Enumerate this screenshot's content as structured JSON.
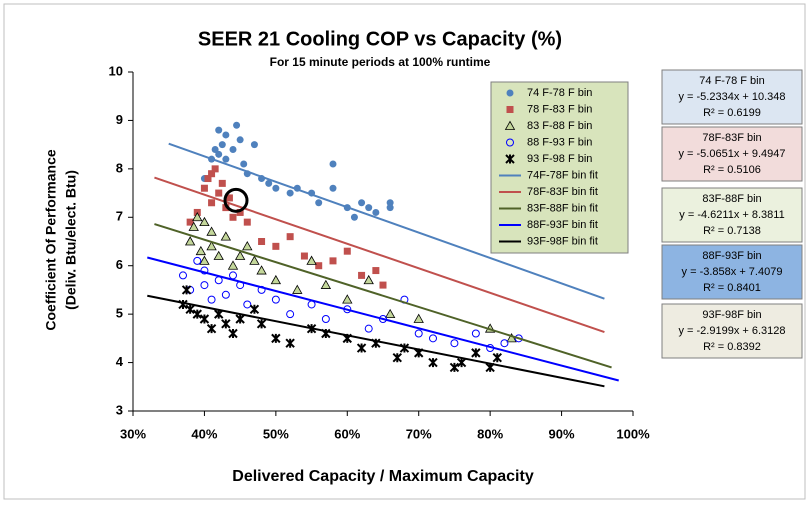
{
  "chart_data": {
    "type": "scatter",
    "title": "SEER 21 Cooling COP vs Capacity (%)",
    "subtitle": "For 15 minute periods at 100% runtime",
    "x_label": "Delivered Capacity / Maximum Capacity",
    "y_label": [
      "Coefficient Of Performance",
      "(Deliv. Btu/elect. Btu)"
    ],
    "xlim": [
      30,
      100
    ],
    "xticks": [
      {
        "value": 30,
        "label": "30%"
      },
      {
        "value": 40,
        "label": "40%"
      },
      {
        "value": 50,
        "label": "50%"
      },
      {
        "value": 60,
        "label": "60%"
      },
      {
        "value": 70,
        "label": "70%"
      },
      {
        "value": 80,
        "label": "80%"
      },
      {
        "value": 90,
        "label": "90%"
      },
      {
        "value": 100,
        "label": "100%"
      }
    ],
    "ylim": [
      3,
      10
    ],
    "yticks": [
      3,
      4,
      5,
      6,
      7,
      8,
      9,
      10
    ],
    "grid": false,
    "legend": "upper right",
    "series": [
      {
        "name": "74 F-78 F bin",
        "color": "#4f81bd",
        "marker": "circle",
        "x": [
          40,
          41,
          41.5,
          42,
          42,
          42.5,
          43,
          43,
          44,
          44.5,
          45,
          45.5,
          46,
          47,
          48,
          49,
          50,
          52,
          53,
          55,
          56,
          58,
          60,
          61,
          62,
          63,
          64,
          66,
          66,
          58
        ],
        "values": [
          7.8,
          8.2,
          8.4,
          8.8,
          8.3,
          8.5,
          8.7,
          8.2,
          8.4,
          8.9,
          8.6,
          8.1,
          7.9,
          8.5,
          7.8,
          7.7,
          7.6,
          7.5,
          7.6,
          7.5,
          7.3,
          8.1,
          7.2,
          7.0,
          7.3,
          7.2,
          7.1,
          7.3,
          7.2,
          7.6
        ]
      },
      {
        "name": "78 F-83 F bin",
        "color": "#c0504d",
        "marker": "square",
        "x": [
          38,
          39,
          40,
          40.5,
          41,
          41,
          41.5,
          42,
          42.5,
          43,
          43.5,
          44,
          45,
          46,
          48,
          50,
          52,
          54,
          56,
          58,
          60,
          62,
          64,
          65
        ],
        "values": [
          6.9,
          7.1,
          7.6,
          7.8,
          7.3,
          7.9,
          8.0,
          7.5,
          7.7,
          7.2,
          7.4,
          7.0,
          7.1,
          6.9,
          6.5,
          6.4,
          6.6,
          6.2,
          6.0,
          6.1,
          6.3,
          5.8,
          5.9,
          5.6
        ]
      },
      {
        "name": "83 F-88 F bin",
        "color": "#c4d79b",
        "marker": "triangle",
        "x": [
          38,
          38.5,
          39,
          39.5,
          40,
          40,
          41,
          41,
          42,
          43,
          44,
          45,
          46,
          47,
          48,
          50,
          53,
          55,
          57,
          60,
          63,
          66,
          70,
          80,
          83
        ],
        "values": [
          6.5,
          6.8,
          7.0,
          6.3,
          6.9,
          6.1,
          6.7,
          6.4,
          6.2,
          6.6,
          6.0,
          6.2,
          6.4,
          6.1,
          5.9,
          5.7,
          5.5,
          6.1,
          5.6,
          5.3,
          5.7,
          5.0,
          4.9,
          4.7,
          4.5
        ]
      },
      {
        "name": "88 F-93 F bin",
        "color": "#0000ff",
        "marker": "open-circle",
        "x": [
          37,
          38,
          39,
          40,
          40,
          41,
          42,
          43,
          44,
          45,
          46,
          48,
          50,
          52,
          55,
          57,
          60,
          63,
          65,
          68,
          70,
          72,
          75,
          78,
          80,
          82,
          84
        ],
        "values": [
          5.8,
          5.5,
          6.1,
          5.6,
          5.9,
          5.3,
          5.7,
          5.4,
          5.8,
          5.6,
          5.2,
          5.5,
          5.3,
          5.0,
          5.2,
          4.9,
          5.1,
          4.7,
          4.9,
          5.3,
          4.6,
          4.5,
          4.4,
          4.6,
          4.3,
          4.4,
          4.5
        ]
      },
      {
        "name": "93 F-98 F bin",
        "color": "#000000",
        "marker": "x",
        "x": [
          37,
          37.5,
          38,
          39,
          40,
          41,
          42,
          43,
          44,
          45,
          47,
          48,
          50,
          52,
          55,
          57,
          60,
          62,
          64,
          67,
          68,
          70,
          72,
          75,
          76,
          78,
          80,
          81
        ],
        "values": [
          5.2,
          5.5,
          5.1,
          5.0,
          4.9,
          4.7,
          5.0,
          4.8,
          4.6,
          4.9,
          5.1,
          4.8,
          4.5,
          4.4,
          4.7,
          4.6,
          4.5,
          4.3,
          4.4,
          4.1,
          4.3,
          4.2,
          4.0,
          3.9,
          4.0,
          4.2,
          3.9,
          4.1
        ]
      },
      {
        "name": "74F-78F bin fit",
        "color": "#4f81bd",
        "marker": "line",
        "x": [
          35,
          96
        ],
        "values": [
          8.52,
          5.32
        ]
      },
      {
        "name": "78F-83F bin fit",
        "color": "#c0504d",
        "marker": "line",
        "x": [
          33,
          96
        ],
        "values": [
          7.82,
          4.63
        ]
      },
      {
        "name": "83F-88F bin fit",
        "color": "#4f6228",
        "marker": "line",
        "x": [
          33,
          97
        ],
        "values": [
          6.86,
          3.9
        ]
      },
      {
        "name": "88F-93F bin fit",
        "color": "#0000ff",
        "marker": "line",
        "x": [
          32,
          98
        ],
        "values": [
          6.17,
          3.63
        ]
      },
      {
        "name": "93F-98F bin fit",
        "color": "#000000",
        "marker": "line",
        "x": [
          32,
          96
        ],
        "values": [
          5.38,
          3.51
        ]
      }
    ],
    "annotations": [
      {
        "lines": [
          "74 F-78 F bin",
          "y = -5.2334x + 10.348",
          "R² = 0.6199"
        ],
        "color": "#dce6f2"
      },
      {
        "lines": [
          "78F-83F bin",
          "y = -5.0651x + 9.4947",
          "R² = 0.5106"
        ],
        "color": "#f2dcdb"
      },
      {
        "lines": [
          "83F-88F bin",
          "y = -4.6211x + 8.3811",
          "R² = 0.7138"
        ],
        "color": "#ebf1de"
      },
      {
        "lines": [
          "88F-93F bin",
          "y = -3.858x + 7.4079",
          "R² = 0.8401"
        ],
        "color": "#8db4e2"
      },
      {
        "lines": [
          "93F-98F bin",
          "y = -2.9199x + 6.3128",
          "R² = 0.8392"
        ],
        "color": "#eeece1"
      }
    ]
  }
}
